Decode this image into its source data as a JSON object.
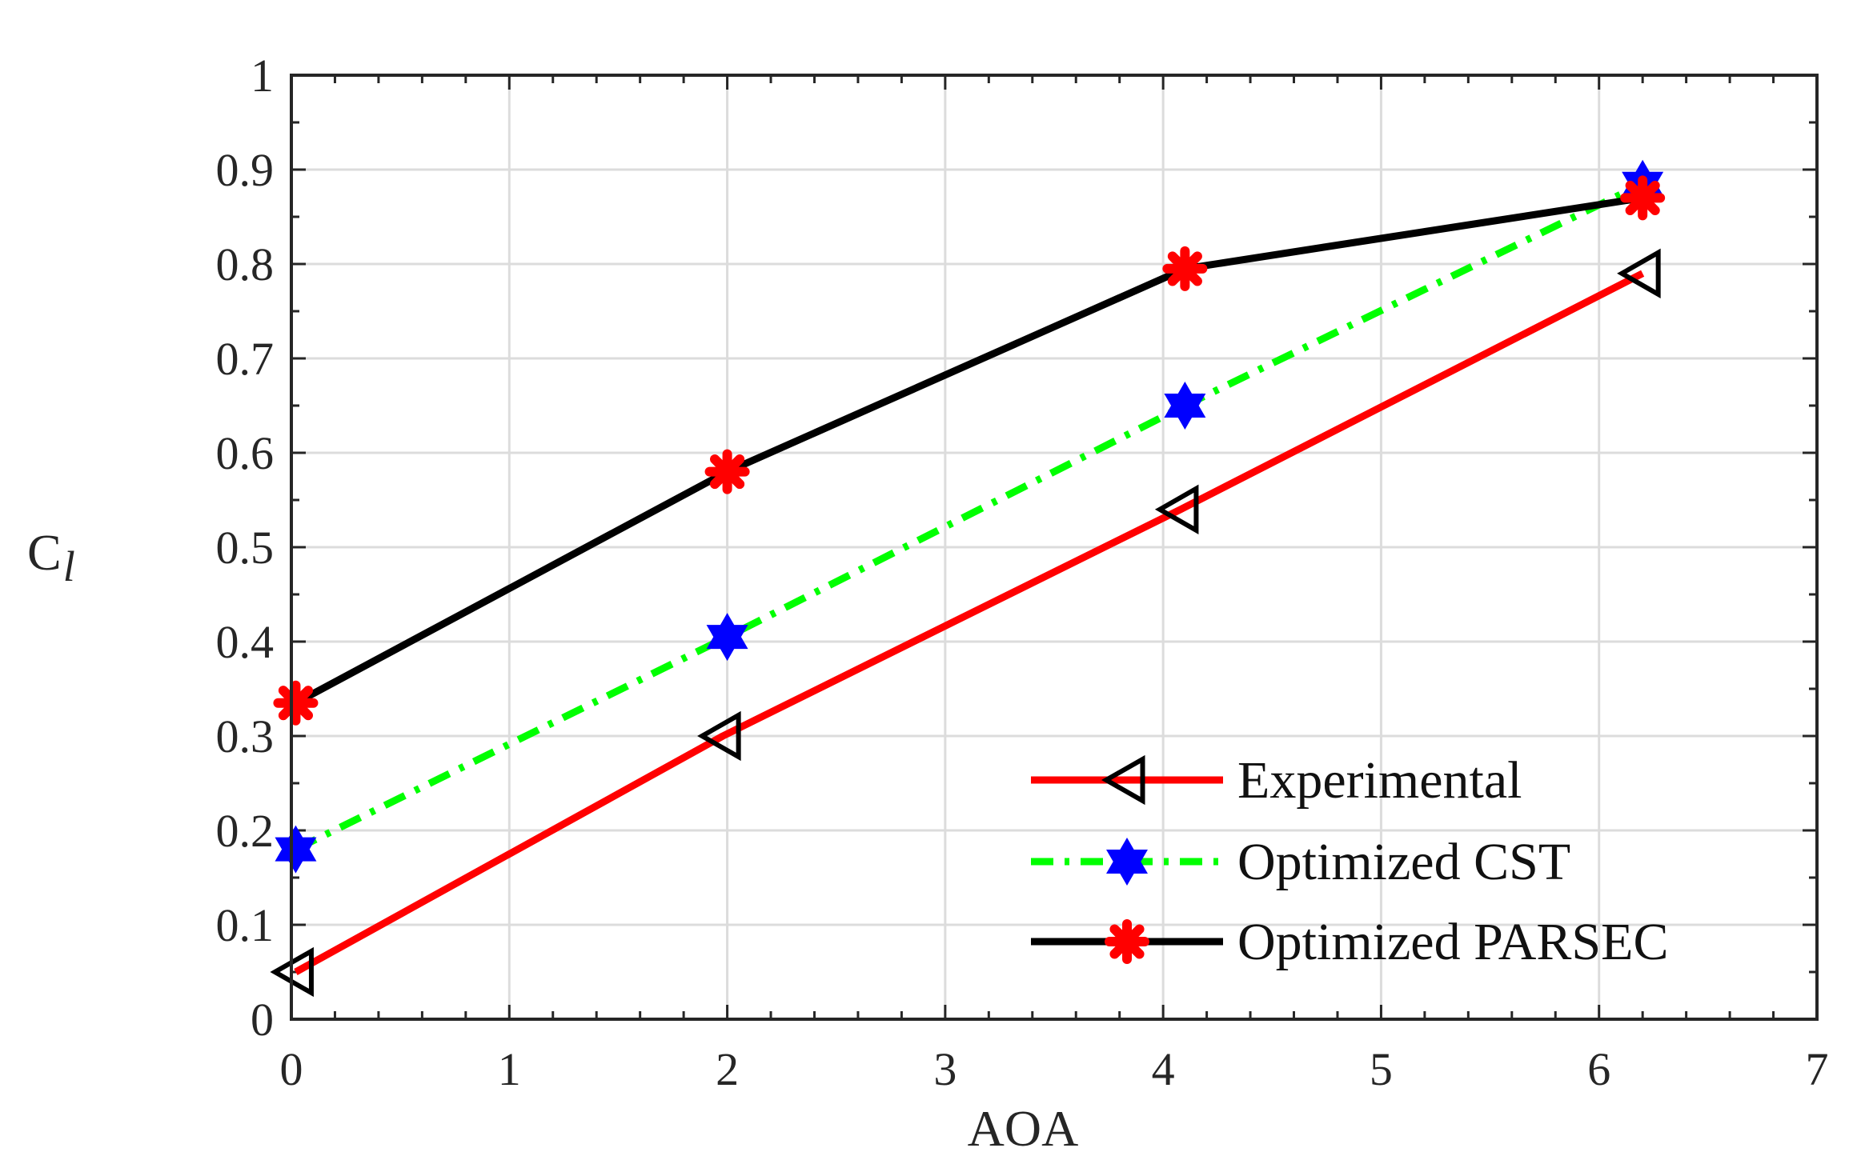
{
  "chart_data": {
    "type": "line",
    "title": "",
    "xlabel": "AOA",
    "ylabel_main": "C",
    "ylabel_sub": "l",
    "xlim": [
      0,
      7
    ],
    "ylim": [
      0,
      1
    ],
    "xticks": [
      "0",
      "1",
      "2",
      "3",
      "4",
      "5",
      "6",
      "7"
    ],
    "yticks": [
      "0",
      "0.1",
      "0.2",
      "0.3",
      "0.4",
      "0.5",
      "0.6",
      "0.7",
      "0.8",
      "0.9",
      "1"
    ],
    "grid": true,
    "legend_position": "bottom-right",
    "series": [
      {
        "name": "Experimental",
        "color": "#ff0000",
        "line_style": "solid",
        "marker": "triangle-left",
        "marker_stroke": "#000000",
        "x": [
          0.02,
          1.98,
          4.08,
          6.2
        ],
        "y": [
          0.05,
          0.3,
          0.54,
          0.79
        ]
      },
      {
        "name": "Optimized CST",
        "color": "#00ff00",
        "line_style": "dash-dot",
        "marker": "hexagram",
        "marker_fill": "#0000ff",
        "x": [
          0.02,
          2.0,
          4.1,
          6.2
        ],
        "y": [
          0.18,
          0.405,
          0.65,
          0.885
        ]
      },
      {
        "name": "Optimized PARSEC",
        "color": "#000000",
        "line_style": "solid",
        "marker": "asterisk",
        "marker_fill": "#ff0000",
        "x": [
          0.02,
          2.0,
          4.1,
          6.2
        ],
        "y": [
          0.335,
          0.58,
          0.795,
          0.87
        ]
      }
    ]
  }
}
